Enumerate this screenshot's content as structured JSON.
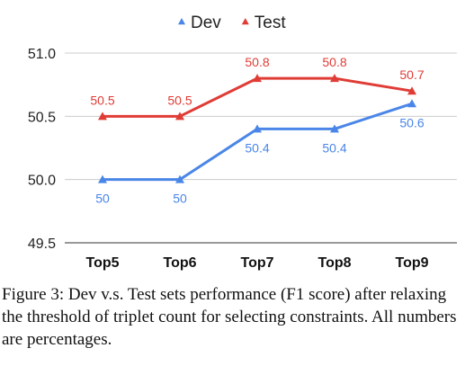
{
  "chart_data": {
    "type": "line",
    "categories": [
      "Top5",
      "Top6",
      "Top7",
      "Top8",
      "Top9"
    ],
    "series": [
      {
        "name": "Dev",
        "values": [
          50.0,
          50.0,
          50.4,
          50.4,
          50.6
        ],
        "labels": [
          "50",
          "50",
          "50.4",
          "50.4",
          "50.6"
        ],
        "color": "#4a86e8",
        "label_position": "below"
      },
      {
        "name": "Test",
        "values": [
          50.5,
          50.5,
          50.8,
          50.8,
          50.7
        ],
        "labels": [
          "50.5",
          "50.5",
          "50.8",
          "50.8",
          "50.7"
        ],
        "color": "#e03c36",
        "label_position": "above"
      }
    ],
    "ylim": [
      49.5,
      51.0
    ],
    "yticks": [
      "49.5",
      "50.0",
      "50.5",
      "51.0"
    ],
    "grid": true,
    "legend": "top-center",
    "marker": "triangle"
  },
  "caption": "Figure 3: Dev v.s.  Test sets performance (F1 score) after relaxing the threshold of triplet count for selecting constraints. All numbers are percentages."
}
